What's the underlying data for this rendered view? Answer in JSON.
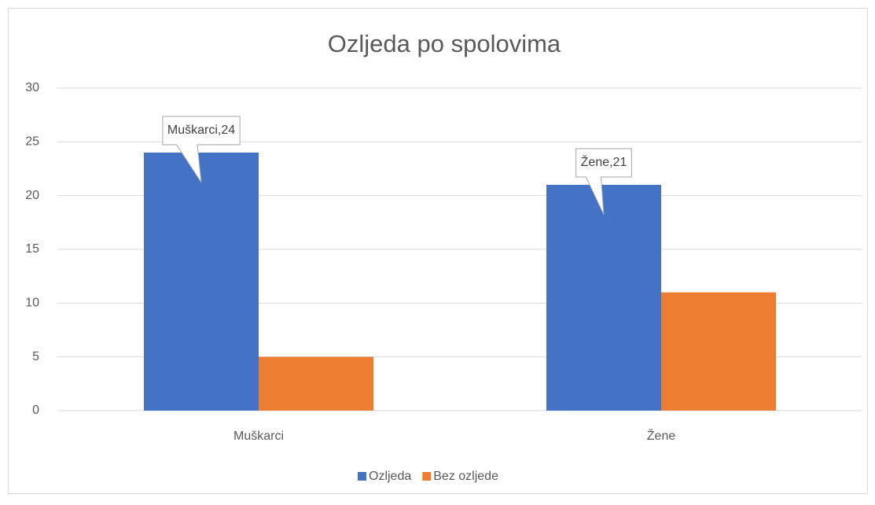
{
  "chart_data": {
    "type": "bar",
    "title": "Ozljeda po spolovima",
    "categories": [
      "Muškarci",
      "Žene"
    ],
    "series": [
      {
        "name": "Ozljeda",
        "color": "#4472c4",
        "values": [
          24,
          21
        ],
        "value_labels": [
          "Muškarci,24",
          "Žene,21"
        ]
      },
      {
        "name": "Bez ozljede",
        "color": "#ed7d31",
        "values": [
          5,
          11
        ]
      }
    ],
    "ylim": [
      0,
      30
    ],
    "yticks": [
      0,
      5,
      10,
      15,
      20,
      25,
      30
    ],
    "grid": true,
    "legend": "bottom"
  }
}
